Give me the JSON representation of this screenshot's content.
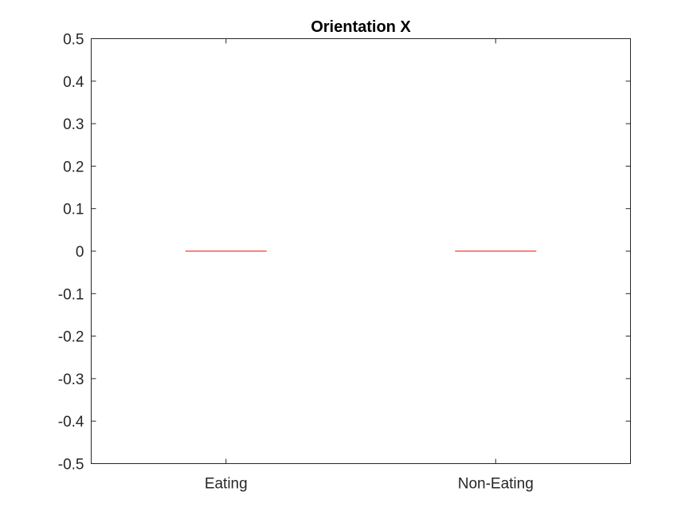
{
  "chart_data": {
    "type": "boxplot",
    "title": "Orientation X",
    "xlabel": "",
    "ylabel": "",
    "categories": [
      "Eating",
      "Non-Eating"
    ],
    "medians": [
      0,
      0
    ],
    "ylim": [
      -0.5,
      0.5
    ],
    "yticks": [
      0.5,
      0.4,
      0.3,
      0.2,
      0.1,
      0,
      -0.1,
      -0.2,
      -0.3,
      -0.4,
      -0.5
    ],
    "ytick_labels": [
      "0.5",
      "0.4",
      "0.3",
      "0.2",
      "0.1",
      "0",
      "-0.1",
      "-0.2",
      "-0.3",
      "-0.4",
      "-0.5"
    ],
    "grid": false,
    "legend": "none",
    "colors": {
      "median": "#ff0000",
      "axis": "#262626",
      "text": "#262626",
      "title": "#000000"
    }
  }
}
